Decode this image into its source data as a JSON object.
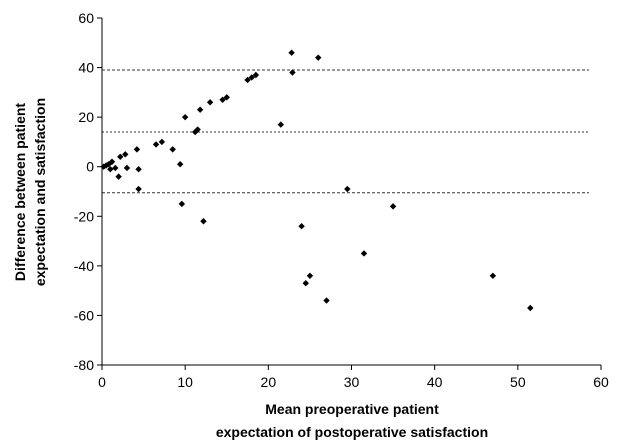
{
  "chart_data": {
    "type": "scatter",
    "title": "",
    "xlabel_lines": [
      "Mean preoperative patient",
      "expectation of postoperative satisfaction"
    ],
    "ylabel_lines": [
      "Difference between patient",
      "expectation and satisfaction"
    ],
    "xlim": [
      0,
      60
    ],
    "ylim": [
      -80,
      60
    ],
    "x_ticks": [
      0,
      10,
      20,
      30,
      40,
      50,
      60
    ],
    "y_ticks": [
      -80,
      -60,
      -40,
      -20,
      0,
      20,
      40,
      60
    ],
    "x_tick_labels": [
      "0",
      "10",
      "20",
      "30",
      "40",
      "50",
      "60"
    ],
    "y_tick_labels": [
      "-80",
      "-60",
      "-40",
      "-20",
      "0",
      "20",
      "40",
      "60"
    ],
    "grid": false,
    "reference_lines": [
      {
        "y": 39,
        "style": "dashed"
      },
      {
        "y": 14,
        "style": "dotted"
      },
      {
        "y": -10.5,
        "style": "dashed"
      }
    ],
    "marker_color": "#000000",
    "points": [
      {
        "x": 0.2,
        "y": 0
      },
      {
        "x": 0.5,
        "y": 0.5
      },
      {
        "x": 0.8,
        "y": 1
      },
      {
        "x": 1.0,
        "y": -1
      },
      {
        "x": 1.2,
        "y": 2
      },
      {
        "x": 1.6,
        "y": -0.5
      },
      {
        "x": 2.0,
        "y": -4
      },
      {
        "x": 2.2,
        "y": 4
      },
      {
        "x": 2.8,
        "y": 5
      },
      {
        "x": 3.0,
        "y": -0.5
      },
      {
        "x": 4.2,
        "y": 7
      },
      {
        "x": 4.4,
        "y": -1
      },
      {
        "x": 4.4,
        "y": -9
      },
      {
        "x": 6.5,
        "y": 9
      },
      {
        "x": 7.2,
        "y": 10
      },
      {
        "x": 8.5,
        "y": 7
      },
      {
        "x": 9.4,
        "y": 1
      },
      {
        "x": 9.6,
        "y": -15
      },
      {
        "x": 10.0,
        "y": 20
      },
      {
        "x": 11.2,
        "y": 14
      },
      {
        "x": 11.5,
        "y": 15
      },
      {
        "x": 11.8,
        "y": 23
      },
      {
        "x": 12.2,
        "y": -22
      },
      {
        "x": 13.0,
        "y": 26
      },
      {
        "x": 14.5,
        "y": 27
      },
      {
        "x": 15.0,
        "y": 28
      },
      {
        "x": 17.5,
        "y": 35
      },
      {
        "x": 18.0,
        "y": 36
      },
      {
        "x": 18.5,
        "y": 37
      },
      {
        "x": 21.5,
        "y": 17
      },
      {
        "x": 22.8,
        "y": 46
      },
      {
        "x": 22.9,
        "y": 38
      },
      {
        "x": 24.0,
        "y": -24
      },
      {
        "x": 24.5,
        "y": -47
      },
      {
        "x": 25.0,
        "y": -44
      },
      {
        "x": 26.0,
        "y": 44
      },
      {
        "x": 27.0,
        "y": -54
      },
      {
        "x": 29.5,
        "y": -9
      },
      {
        "x": 31.5,
        "y": -35
      },
      {
        "x": 35.0,
        "y": -16
      },
      {
        "x": 47.0,
        "y": -44
      },
      {
        "x": 51.5,
        "y": -57
      }
    ]
  }
}
